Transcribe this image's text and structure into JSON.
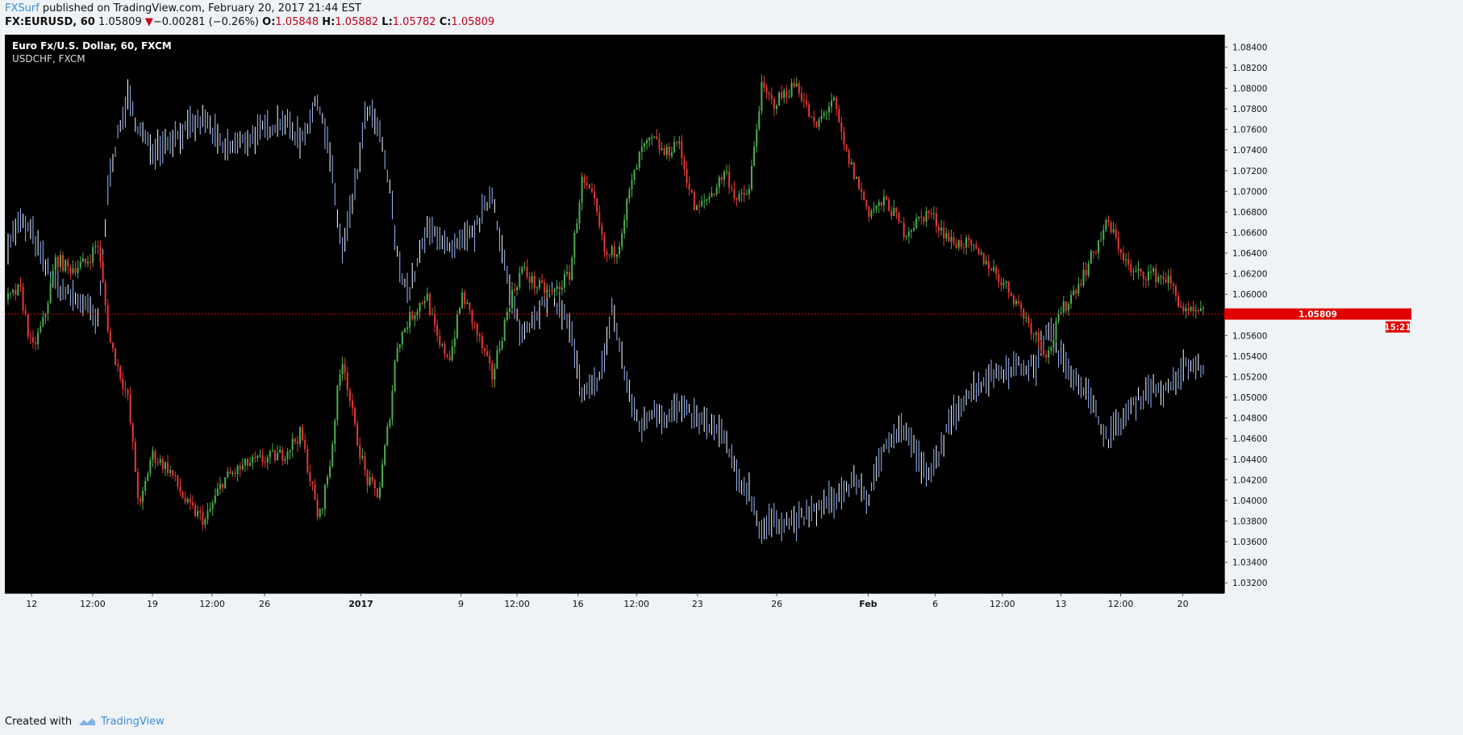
{
  "header": {
    "author": "FXSurf",
    "published_text": " published on TradingView.com, February 20, 2017 21:44 EST",
    "symbol": "FX:EURUSD, 60",
    "last": "1.05809",
    "change_arrow": "▼",
    "change": "−0.00281 (−0.26%)",
    "open_label": "O:",
    "open": "1.05848",
    "high_label": "H:",
    "high": "1.05882",
    "low_label": "L:",
    "low": "1.05782",
    "close_label": "C:",
    "close": "1.05809"
  },
  "legend": {
    "main_series": "Euro Fx/U.S. Dollar, 60, FXCM",
    "overlay_series": "USDCHF, FXCM"
  },
  "price_badge": {
    "price": "1.05809",
    "countdown": "15:21"
  },
  "footer": {
    "created_with": "Created with",
    "brand": "TradingView"
  },
  "colors": {
    "background": "#000000",
    "up_candle": "#4caf50",
    "down_candle": "#e53935",
    "overlay_line": "#8fb5ff",
    "price_line": "#d50000",
    "axis_bg": "#f0f3f6"
  },
  "chart_data": {
    "type": "line",
    "x_ticks": [
      "12",
      "12:00",
      "19",
      "12:00",
      "26",
      "2017",
      "9",
      "12:00",
      "16",
      "12:00",
      "23",
      "26",
      "Feb",
      "6",
      "12:00",
      "13",
      "12:00",
      "20"
    ],
    "y_ticks": [
      "1.08400",
      "1.08200",
      "1.08000",
      "1.07800",
      "1.07600",
      "1.07400",
      "1.07200",
      "1.07000",
      "1.06800",
      "1.06600",
      "1.06400",
      "1.06200",
      "1.06000",
      "1.05600",
      "1.05400",
      "1.05200",
      "1.05000",
      "1.04800",
      "1.04600",
      "1.04400",
      "1.04200",
      "1.04000",
      "1.03800",
      "1.03600",
      "1.03400",
      "1.03200"
    ],
    "ylim": [
      1.031,
      1.0852
    ],
    "last_price": 1.05809,
    "series": [
      {
        "name": "Euro Fx/U.S. Dollar, 60, FXCM",
        "style": "candles",
        "x": [
          0,
          0.01,
          0.02,
          0.03,
          0.04,
          0.05,
          0.065,
          0.075,
          0.085,
          0.1,
          0.11,
          0.12,
          0.135,
          0.15,
          0.165,
          0.18,
          0.2,
          0.23,
          0.245,
          0.26,
          0.27,
          0.275,
          0.28,
          0.29,
          0.3,
          0.31,
          0.32,
          0.325,
          0.335,
          0.35,
          0.36,
          0.37,
          0.38,
          0.39,
          0.405,
          0.42,
          0.43,
          0.44,
          0.455,
          0.47,
          0.48,
          0.49,
          0.5,
          0.505,
          0.51,
          0.52,
          0.53,
          0.54,
          0.55,
          0.56,
          0.575,
          0.59,
          0.6,
          0.61,
          0.62,
          0.63,
          0.64,
          0.66,
          0.675,
          0.69,
          0.7,
          0.71,
          0.72,
          0.735,
          0.75,
          0.77,
          0.79,
          0.8,
          0.82,
          0.84,
          0.86,
          0.87,
          0.88,
          0.9,
          0.92,
          0.94,
          0.955,
          0.97,
          0.985
        ],
        "values": [
          1.0595,
          1.0605,
          1.0545,
          1.0575,
          1.0635,
          1.0625,
          1.063,
          1.065,
          1.0555,
          1.05,
          1.039,
          1.0445,
          1.043,
          1.0395,
          1.038,
          1.042,
          1.0435,
          1.0445,
          1.0465,
          1.038,
          1.044,
          1.05,
          1.054,
          1.047,
          1.042,
          1.0405,
          1.049,
          1.055,
          1.0575,
          1.06,
          1.055,
          1.054,
          1.06,
          1.057,
          1.052,
          1.0595,
          1.0625,
          1.061,
          1.06,
          1.062,
          1.071,
          1.069,
          1.0635,
          1.064,
          1.0645,
          1.07,
          1.074,
          1.075,
          1.0735,
          1.075,
          1.068,
          1.07,
          1.072,
          1.069,
          1.07,
          1.08,
          1.0785,
          1.0805,
          1.076,
          1.079,
          1.074,
          1.071,
          1.068,
          1.069,
          1.066,
          1.068,
          1.065,
          1.065,
          1.063,
          1.06,
          1.056,
          1.054,
          1.058,
          1.062,
          1.067,
          1.062,
          1.062,
          1.0615,
          1.0581
        ]
      },
      {
        "name": "USDCHF, FXCM",
        "style": "bars",
        "x": [
          0,
          0.01,
          0.02,
          0.03,
          0.04,
          0.05,
          0.065,
          0.075,
          0.085,
          0.1,
          0.11,
          0.12,
          0.135,
          0.15,
          0.165,
          0.18,
          0.2,
          0.23,
          0.245,
          0.26,
          0.27,
          0.275,
          0.28,
          0.29,
          0.3,
          0.31,
          0.32,
          0.325,
          0.335,
          0.35,
          0.36,
          0.37,
          0.38,
          0.39,
          0.405,
          0.42,
          0.43,
          0.44,
          0.455,
          0.47,
          0.48,
          0.49,
          0.5,
          0.505,
          0.51,
          0.52,
          0.53,
          0.54,
          0.55,
          0.56,
          0.575,
          0.59,
          0.6,
          0.61,
          0.62,
          0.63,
          0.64,
          0.66,
          0.675,
          0.69,
          0.7,
          0.71,
          0.72,
          0.735,
          0.75,
          0.77,
          0.79,
          0.8,
          0.82,
          0.84,
          0.86,
          0.87,
          0.88,
          0.9,
          0.92,
          0.94,
          0.955,
          0.97,
          0.985
        ],
        "values": [
          1.065,
          1.067,
          1.066,
          1.063,
          1.061,
          1.06,
          1.059,
          1.057,
          1.072,
          1.079,
          1.076,
          1.074,
          1.075,
          1.076,
          1.077,
          1.074,
          1.075,
          1.077,
          1.075,
          1.079,
          1.073,
          1.068,
          1.064,
          1.07,
          1.078,
          1.076,
          1.07,
          1.064,
          1.06,
          1.066,
          1.066,
          1.064,
          1.065,
          1.066,
          1.07,
          1.06,
          1.056,
          1.058,
          1.06,
          1.057,
          1.05,
          1.051,
          1.054,
          1.059,
          1.056,
          1.05,
          1.047,
          1.049,
          1.048,
          1.049,
          1.048,
          1.047,
          1.046,
          1.042,
          1.041,
          1.037,
          1.038,
          1.038,
          1.039,
          1.04,
          1.041,
          1.042,
          1.04,
          1.046,
          1.047,
          1.042,
          1.048,
          1.05,
          1.052,
          1.053,
          1.053,
          1.057,
          1.054,
          1.051,
          1.046,
          1.049,
          1.051,
          1.0505,
          1.053
        ]
      }
    ]
  }
}
